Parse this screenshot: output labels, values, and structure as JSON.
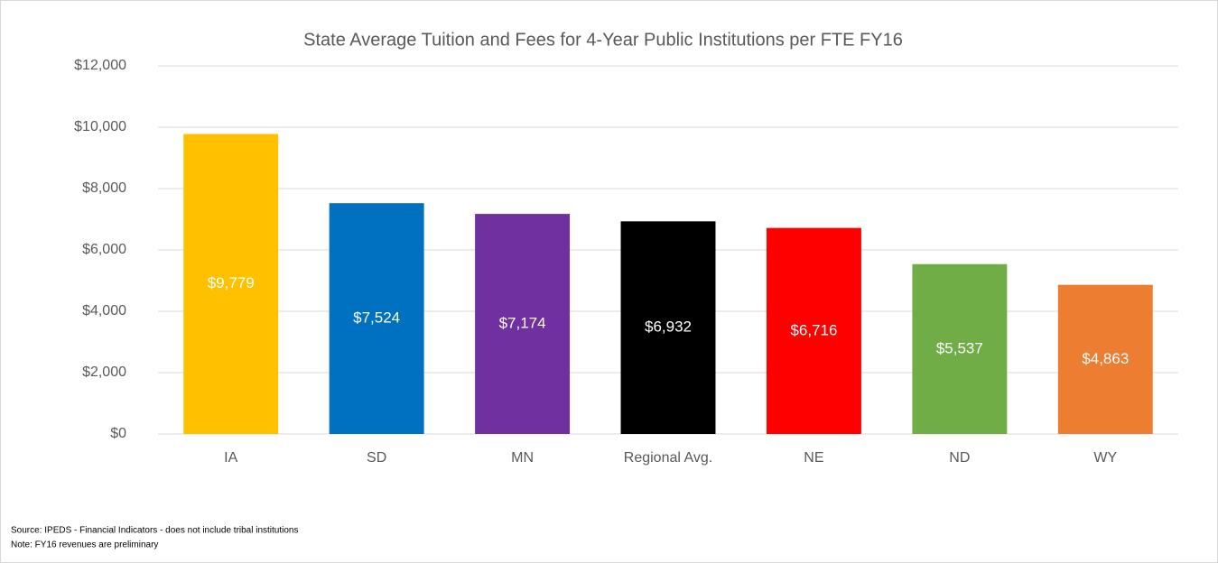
{
  "chart_data": {
    "type": "bar",
    "title": "State Average Tuition and Fees for 4-Year Public Institutions per FTE FY16",
    "categories": [
      "IA",
      "SD",
      "MN",
      "Regional Avg.",
      "NE",
      "ND",
      "WY"
    ],
    "values": [
      9779,
      7524,
      7174,
      6932,
      6716,
      5537,
      4863
    ],
    "value_labels": [
      "$9,779",
      "$7,524",
      "$7,174",
      "$6,932",
      "$6,716",
      "$5,537",
      "$4,863"
    ],
    "colors": [
      "#ffc000",
      "#0070c0",
      "#7030a0",
      "#000000",
      "#ff0000",
      "#70ad47",
      "#ed7d31"
    ],
    "ylim": [
      0,
      12000
    ],
    "yticks": [
      {
        "value": 0,
        "label": "$0"
      },
      {
        "value": 2000,
        "label": "$2,000"
      },
      {
        "value": 4000,
        "label": "$4,000"
      },
      {
        "value": 6000,
        "label": "$6,000"
      },
      {
        "value": 8000,
        "label": "$8,000"
      },
      {
        "value": 10000,
        "label": "$10,000"
      },
      {
        "value": 12000,
        "label": "$12,000"
      }
    ],
    "grid": true,
    "source": "Source: IPEDS - Financial Indicators - does not include tribal institutions",
    "note": "Note: FY16 revenues are preliminary"
  }
}
